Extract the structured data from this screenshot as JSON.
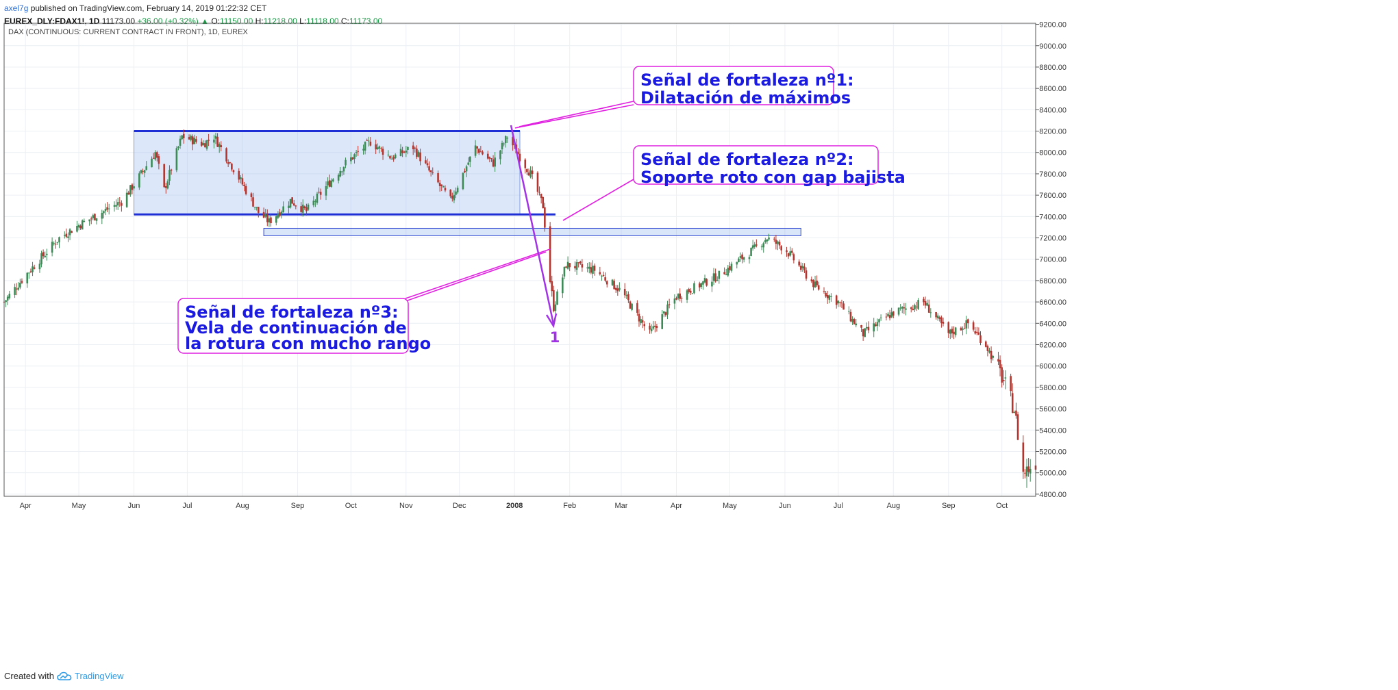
{
  "header": {
    "author": "axel7g",
    "published": "published on TradingView.com, February 14, 2019 01:22:32 CET",
    "symbol": "EUREX_DLY:FDAX1!, 1D",
    "last": "11173.00",
    "change": "+36.00 (+0.32%)",
    "change_icon": "triangle-up-icon",
    "open_label": "O:",
    "open": "11150.00",
    "high_label": "H:",
    "high": "11218.00",
    "low_label": "L:",
    "low": "11118.00",
    "close_label": "C:",
    "close": "11173.00"
  },
  "chart_title": "DAX (CONTINUOUS: CURRENT CONTRACT IN FRONT), 1D, EUREX",
  "footer": {
    "created_with": "Created with",
    "brand": "TradingView",
    "logo_icon": "tradingview-cloud-icon"
  },
  "colors": {
    "up": "#3d8a57",
    "down": "#b2362f",
    "box": "#1f2fd6",
    "annot": "#e020e0",
    "text_blue": "#1a1ae0",
    "arrow": "#a232e6"
  },
  "chart_data": {
    "type": "candlestick",
    "title": "DAX (CONTINUOUS: CURRENT CONTRACT IN FRONT), 1D, EUREX",
    "y_ticks": [
      "4800.00",
      "5000.00",
      "5200.00",
      "5400.00",
      "5600.00",
      "5800.00",
      "6000.00",
      "6200.00",
      "6400.00",
      "6600.00",
      "6800.00",
      "7000.00",
      "7200.00",
      "7400.00",
      "7600.00",
      "7800.00",
      "8000.00",
      "8200.00",
      "8400.00",
      "8600.00",
      "8800.00",
      "9000.00",
      "9200.00"
    ],
    "ylim": [
      4780,
      9210
    ],
    "x_ticks": [
      "Apr",
      "May",
      "Jun",
      "Jul",
      "Aug",
      "Sep",
      "Oct",
      "Nov",
      "Dec",
      "2008",
      "Feb",
      "Mar",
      "Apr",
      "May",
      "Jun",
      "Jul",
      "Aug",
      "Sep",
      "Oct"
    ],
    "date_range": [
      "2007-03-20",
      "2008-10-20"
    ],
    "price_path": [
      [
        "2007-03-20",
        6600
      ],
      [
        "2007-04-01",
        6850
      ],
      [
        "2007-04-20",
        7200
      ],
      [
        "2007-05-01",
        7320
      ],
      [
        "2007-05-25",
        7540
      ],
      [
        "2007-06-01",
        7700
      ],
      [
        "2007-06-13",
        8000
      ],
      [
        "2007-06-18",
        7650
      ],
      [
        "2007-06-28",
        8150
      ],
      [
        "2007-07-10",
        8080
      ],
      [
        "2007-07-16",
        8150
      ],
      [
        "2007-07-27",
        7850
      ],
      [
        "2007-08-10",
        7440
      ],
      [
        "2007-08-16",
        7350
      ],
      [
        "2007-08-28",
        7550
      ],
      [
        "2007-09-06",
        7450
      ],
      [
        "2007-09-18",
        7700
      ],
      [
        "2007-09-28",
        7900
      ],
      [
        "2007-10-12",
        8100
      ],
      [
        "2007-10-24",
        7950
      ],
      [
        "2007-11-05",
        8050
      ],
      [
        "2007-11-15",
        7800
      ],
      [
        "2007-11-26",
        7550
      ],
      [
        "2007-12-10",
        8050
      ],
      [
        "2007-12-20",
        7900
      ],
      [
        "2007-12-28",
        8150
      ],
      [
        "2008-01-10",
        7800
      ],
      [
        "2008-01-17",
        7500
      ],
      [
        "2008-01-21",
        6800
      ],
      [
        "2008-01-23",
        6550
      ],
      [
        "2008-01-30",
        6950
      ],
      [
        "2008-02-15",
        6900
      ],
      [
        "2008-03-01",
        6700
      ],
      [
        "2008-03-17",
        6300
      ],
      [
        "2008-04-01",
        6650
      ],
      [
        "2008-04-25",
        6850
      ],
      [
        "2008-05-15",
        7100
      ],
      [
        "2008-05-22",
        7200
      ],
      [
        "2008-06-01",
        7100
      ],
      [
        "2008-06-18",
        6750
      ],
      [
        "2008-07-01",
        6600
      ],
      [
        "2008-07-15",
        6300
      ],
      [
        "2008-08-01",
        6500
      ],
      [
        "2008-08-18",
        6600
      ],
      [
        "2008-09-01",
        6300
      ],
      [
        "2008-09-12",
        6400
      ],
      [
        "2008-09-22",
        6200
      ],
      [
        "2008-10-01",
        5900
      ],
      [
        "2008-10-08",
        5600
      ],
      [
        "2008-10-13",
        5000
      ],
      [
        "2008-10-20",
        5100
      ]
    ],
    "range_box": {
      "from": "2007-06-01",
      "to": "2008-01-04",
      "top": 8200,
      "bottom": 7420
    },
    "gap_zone": {
      "from": "2007-08-13",
      "to": "2008-06-10",
      "top": 7290,
      "bottom": 7220
    },
    "annotations": [
      {
        "id": "s1",
        "lines": [
          "Señal de fortaleza nº1:",
          "Dilatación de máximos"
        ]
      },
      {
        "id": "s2",
        "lines": [
          "Señal de fortaleza nº2:",
          "Soporte roto con gap bajista"
        ]
      },
      {
        "id": "s3",
        "lines": [
          "Señal de fortaleza nº3:",
          "Vela de continuación de",
          "la rotura con mucho rango"
        ]
      }
    ],
    "arrow_label": "1"
  }
}
